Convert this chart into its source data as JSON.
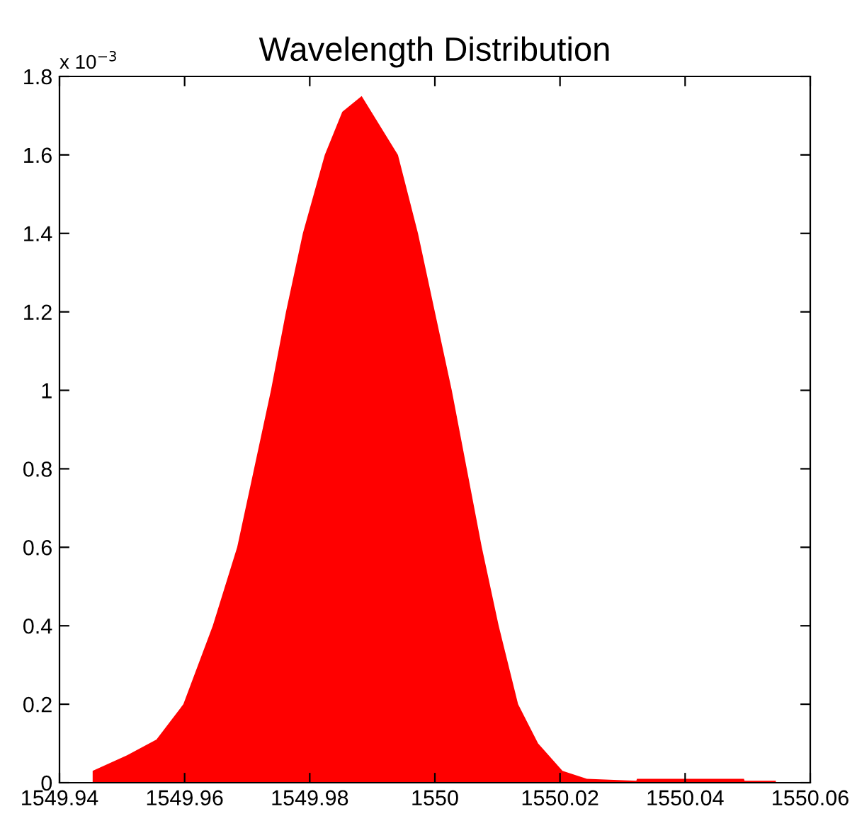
{
  "chart_data": {
    "type": "area",
    "title": "Wavelength Distribution",
    "annotations": [
      "x 10$^{−3}$"
    ],
    "x": [
      1549.9453,
      1549.9508,
      1549.9555,
      1549.9598,
      1549.9645,
      1549.9684,
      1549.9711,
      1549.9738,
      1549.9762,
      1549.9789,
      1549.9824,
      1549.9852,
      1549.9883,
      1549.9941,
      1549.9973,
      1550.0,
      1550.0027,
      1550.0051,
      1550.0075,
      1550.0102,
      1550.0133,
      1550.0165,
      1550.0204,
      1550.0243,
      1550.0322,
      1550.0323,
      1550.0494,
      1550.0495,
      1550.0545
    ],
    "series": [
      {
        "color": "#ff0000",
        "values": [
          0.03,
          0.07,
          0.11,
          0.2,
          0.4,
          0.6,
          0.8,
          1.0,
          1.2,
          1.4,
          1.6,
          1.71,
          1.75,
          1.6,
          1.4,
          1.2,
          1.0,
          0.8,
          0.6,
          0.4,
          0.2,
          0.1,
          0.03,
          0.01,
          0.005,
          0.01,
          0.01,
          0.005,
          0.005
        ]
      }
    ],
    "xlim": [
      1549.94,
      1550.06
    ],
    "xticks": [
      1549.94,
      1549.96,
      1549.98,
      1550,
      1550.02,
      1550.04,
      1550.06
    ],
    "ylim": [
      0,
      1.8
    ],
    "yticks": [
      0,
      0.2,
      0.4,
      0.6,
      0.8,
      1,
      1.2,
      1.4,
      1.6,
      1.8
    ],
    "grid": false,
    "legend": false
  }
}
